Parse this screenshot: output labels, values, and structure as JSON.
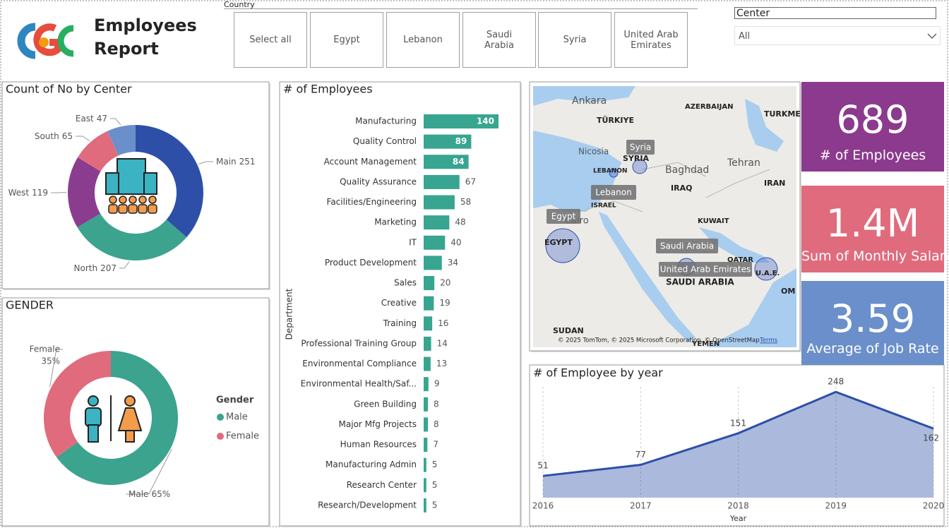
{
  "header": {
    "title": "Employees Report"
  },
  "country_slicer": {
    "label": "Country",
    "options": [
      "Select all",
      "Egypt",
      "Lebanon",
      "Saudi Arabia",
      "Syria",
      "United Arab Emirates"
    ]
  },
  "center_filter": {
    "label": "Center",
    "value": "All"
  },
  "cards": [
    {
      "value": 689,
      "label": "# of Employees",
      "color": "#8B3A8E"
    },
    {
      "value": "1.4M",
      "label": "Sum of Monthly Salary",
      "color": "#E06B7D"
    },
    {
      "value": 3.59,
      "label": "Average of Job Rate",
      "color": "#6A8FCB"
    }
  ],
  "map": {
    "places": [
      "Ankara",
      "TÜRKIYE",
      "AZERBAIJAN",
      "TURKME",
      "Nicosia",
      "SYRIA",
      "LEBANON",
      "Baghdad",
      "Tehran",
      "IRAQ",
      "IRAN",
      "ISRAEL",
      "KUWAIT",
      "Cairo",
      "EGYPT",
      "QATAR",
      "U.A.E.",
      "OM",
      "SAUDI ARABIA",
      "SUDAN",
      "YEMEN"
    ],
    "bubble_labels": [
      "Syria",
      "Lebanon",
      "Egypt",
      "Saudi Arabia",
      "United Arab Emirates"
    ],
    "attribution": "© 2025 TomTom, © 2025 Microsoft Corporation, © OpenStreetMap",
    "terms": "Terms"
  },
  "chart_data": [
    {
      "type": "donut",
      "title": "Count of No by Center",
      "categories": [
        "Main",
        "North",
        "West",
        "South",
        "East"
      ],
      "values": [
        251,
        207,
        119,
        65,
        47
      ],
      "colors": [
        "#2E4FA8",
        "#3BA38E",
        "#8A3D8F",
        "#E06B7D",
        "#6A8FCB"
      ]
    },
    {
      "type": "donut",
      "title": "GENDER",
      "categories": [
        "Male",
        "Female"
      ],
      "values": [
        65,
        35
      ],
      "value_labels": [
        "65%",
        "35%"
      ],
      "colors": [
        "#3BA38E",
        "#E06B7D"
      ],
      "legend_title": "Gender",
      "legend": "right"
    },
    {
      "type": "hbar",
      "title": "# of Employees",
      "y_label": "Department",
      "categories": [
        "Manufacturing",
        "Quality Control",
        "Account Management",
        "Quality Assurance",
        "Facilities/Engineering",
        "Marketing",
        "IT",
        "Product Development",
        "Sales",
        "Creative",
        "Training",
        "Professional Training Group",
        "Environmental Compliance",
        "Environmental Health/Saf...",
        "Green Building",
        "Major Mfg Projects",
        "Human Resources",
        "Manufacturing Admin",
        "Research Center",
        "Research/Development"
      ],
      "values": [
        140,
        89,
        84,
        67,
        58,
        48,
        40,
        34,
        20,
        19,
        16,
        14,
        13,
        9,
        8,
        8,
        7,
        5,
        5,
        5
      ],
      "color": "#37A58F",
      "xlim": [
        0,
        140
      ]
    },
    {
      "type": "area",
      "title": "# of Employee by year",
      "x_label": "Year",
      "x": [
        2016,
        2017,
        2018,
        2019,
        2020
      ],
      "values": [
        51,
        77,
        151,
        248,
        162
      ],
      "color": "#2E4FA8",
      "xlim": [
        2016,
        2020
      ],
      "xticks": [
        2016,
        2017,
        2018,
        2019,
        2020
      ],
      "ylim": [
        0,
        250
      ],
      "grid": true
    }
  ]
}
